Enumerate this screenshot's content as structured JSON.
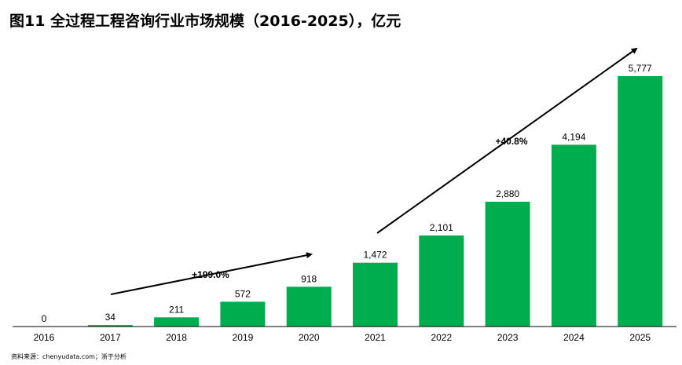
{
  "title": "图11 全过程工程咨询行业市场规模（2016-2025），亿元",
  "source": "资料来源：chenyudata.com；浙于分析",
  "colors": {
    "bar": "#00ad4e",
    "axis": "#000000",
    "arrow": "#000000"
  },
  "chart_data": {
    "type": "bar",
    "categories": [
      "2016",
      "2017",
      "2018",
      "2019",
      "2020",
      "2021",
      "2022",
      "2023",
      "2024",
      "2025"
    ],
    "values": [
      0,
      34,
      211,
      572,
      918,
      1472,
      2101,
      2880,
      4194,
      5777
    ],
    "value_labels": [
      "0",
      "34",
      "211",
      "572",
      "918",
      "1,472",
      "2,101",
      "2,880",
      "4,194",
      "5,777"
    ],
    "ylim": [
      0,
      5777
    ],
    "xlabel": "",
    "ylabel": "",
    "grid": false,
    "legend": "none",
    "annotations": [
      {
        "text": "+199.0%",
        "from_category": "2017",
        "to_category": "2020"
      },
      {
        "text": "+40.8%",
        "from_category": "2021",
        "to_category": "2025"
      }
    ]
  }
}
